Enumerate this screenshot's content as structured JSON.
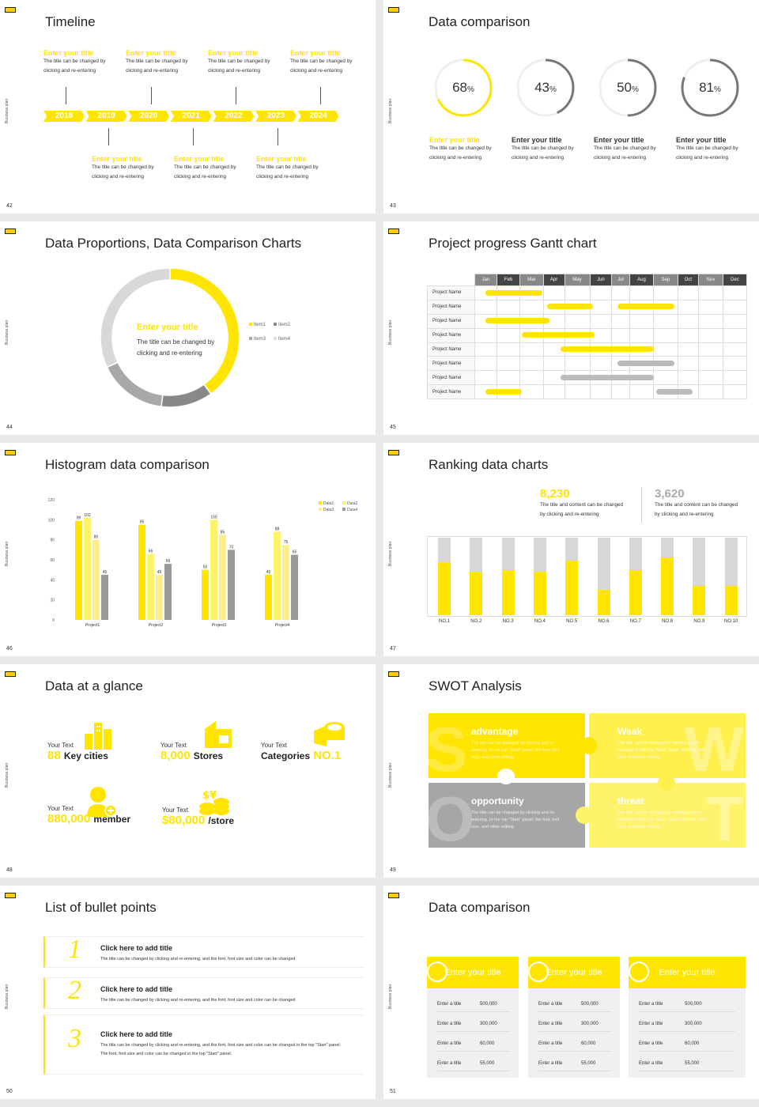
{
  "slides": [
    {
      "num": "42",
      "title": "Timeline",
      "years": [
        "2018",
        "2019",
        "2020",
        "2021",
        "2022",
        "2023",
        "2024"
      ],
      "top_items": [
        {
          "title": "Enter your title",
          "text1": "The title can be changed by",
          "text2": "clicking and re-entering"
        },
        {
          "title": "Enter your title",
          "text1": "The title can be changed by",
          "text2": "clicking and re-entering"
        },
        {
          "title": "Enter your title",
          "text1": "The title can be changed by",
          "text2": "clicking and re-entering"
        },
        {
          "title": "Enter your title",
          "text1": "The title can be changed by",
          "text2": "clicking and re-entering"
        }
      ],
      "bottom_items": [
        {
          "title": "Enter your title",
          "text1": "The title can be changed by",
          "text2": "clicking and re-entering"
        },
        {
          "title": "Enter your title",
          "text1": "The title can be changed by",
          "text2": "clicking and re-entering"
        },
        {
          "title": "Enter your title",
          "text1": "The title can be changed by",
          "text2": "clicking and re-entering"
        }
      ]
    },
    {
      "num": "43",
      "title": "Data comparison",
      "rings": [
        {
          "value": "68",
          "pct": 68,
          "color": "#ffe500",
          "title": "Enter your title",
          "text1": "The title can be changed by",
          "text2": "clicking and re-entering"
        },
        {
          "value": "43",
          "pct": 43,
          "color": "#777777",
          "title": "Enter your title",
          "text1": "The title can be changed by",
          "text2": "clicking and re-entering"
        },
        {
          "value": "50",
          "pct": 50,
          "color": "#777777",
          "title": "Enter your title",
          "text1": "The title can be changed by",
          "text2": "clicking and re-entering"
        },
        {
          "value": "81",
          "pct": 81,
          "color": "#777777",
          "title": "Enter your title",
          "text1": "The title can be changed by",
          "text2": "clicking and re-entering"
        }
      ],
      "pct_sign": "%"
    },
    {
      "num": "44",
      "title": "Data Proportions, Data Comparison Charts",
      "center_title": "Enter your title",
      "center_text1": "The title can be changed by",
      "center_text2": "clicking and re-entering",
      "legend": [
        "Item1",
        "Item2",
        "Item3",
        "Item4"
      ]
    },
    {
      "num": "45",
      "title": "Project progress Gantt chart",
      "months": [
        "Jan",
        "Feb",
        "Mar",
        "Apr",
        "May",
        "Jun",
        "Jul",
        "Aug",
        "Sep",
        "Oct",
        "Nov",
        "Dec"
      ],
      "rows": [
        "Project Name",
        "Project Name",
        "Project Name",
        "Project Name",
        "Project Name",
        "Project Name",
        "Project Name",
        "Project Name"
      ]
    },
    {
      "num": "46",
      "title": "Histogram data comparison"
    },
    {
      "num": "47",
      "title": "Ranking data charts",
      "stat1": {
        "value": "8,230",
        "text1": "The title and content can be changed",
        "text2": "by clicking and re-entering"
      },
      "stat2": {
        "value": "3,620",
        "text1": "The title and content can be changed",
        "text2": "by clicking and re-entering"
      }
    },
    {
      "num": "48",
      "title": "Data at a glance",
      "items": [
        {
          "small": "Your Text",
          "value": "88",
          "label": "Key cities"
        },
        {
          "small": "Your Text",
          "value": "8,000",
          "label": "Stores"
        },
        {
          "small": "Your Text",
          "value": "NO.1",
          "label": "Categories"
        },
        {
          "small": "Your Text",
          "value": "880,000",
          "label": "member"
        },
        {
          "small": "Your Text",
          "value": "$80,000",
          "label": "/store"
        }
      ]
    },
    {
      "num": "49",
      "title": "SWOT Analysis",
      "boxes": [
        {
          "heading": "advantage",
          "letter": "S",
          "text": "The title can be changed by clicking and re-entering. In the top \"Start\" panel, the font, font size, and other editing"
        },
        {
          "heading": "Weak",
          "letter": "W",
          "text": "The title can be changed by clicking and re-entering. In the top \"Start\" panel, the font, font size, and other editing"
        },
        {
          "heading": "opportunity",
          "letter": "O",
          "text": "The title can be changed by clicking and re-entering. In the top \"Start\" panel, the font, font size, and other editing"
        },
        {
          "heading": "threat",
          "letter": "T",
          "text": "The title can be changed by clicking and re-entering. In the top \"Start\" panel, the font, font size, and other editing"
        }
      ]
    },
    {
      "num": "50",
      "title": "List of bullet points",
      "bullets": [
        {
          "n": "1",
          "heading": "Click here to add title",
          "text": "The title can be changed by clicking and re-entering, and the font, font size and color can be changed"
        },
        {
          "n": "2",
          "heading": "Click here to add title",
          "text": "The title can be changed by clicking and re-entering, and the font, font size and color can be changed"
        },
        {
          "n": "3",
          "heading": "Click here to add title",
          "text": "The title can be changed by clicking and re-entering, and the font, font size and color can be changed in the top \"Start\" panel. The font, font size and color can be changed in the top \"Start\" panel."
        }
      ]
    },
    {
      "num": "51",
      "title": "Data comparison",
      "cards": [
        {
          "header": "Enter your title",
          "rows": [
            [
              "Enter a title",
              "500,000"
            ],
            [
              "Enter a title",
              "300,000"
            ],
            [
              "Enter a title",
              "60,000"
            ],
            [
              "Enter a title",
              "55,000"
            ]
          ]
        },
        {
          "header": "Enter your title",
          "rows": [
            [
              "Enter a title",
              "500,000"
            ],
            [
              "Enter a title",
              "300,000"
            ],
            [
              "Enter a title",
              "60,000"
            ],
            [
              "Enter a title",
              "55,000"
            ]
          ]
        },
        {
          "header": "Enter your title",
          "rows": [
            [
              "Enter a title",
              "500,000"
            ],
            [
              "Enter a title",
              "300,000"
            ],
            [
              "Enter a title",
              "60,000"
            ],
            [
              "Enter a title",
              "55,000"
            ]
          ]
        }
      ]
    }
  ],
  "side_label": "Business plan",
  "chart_data": [
    {
      "type": "pie",
      "title": "Data Proportions, Data Comparison Charts",
      "categories": [
        "Item1",
        "Item2",
        "Item3",
        "Item4"
      ],
      "values": [
        40,
        12,
        16,
        32
      ]
    },
    {
      "type": "bar",
      "title": "Histogram data comparison",
      "categories": [
        "Project1",
        "Project2",
        "Project3",
        "Project4"
      ],
      "series": [
        {
          "name": "Data1",
          "values": [
            99,
            95,
            50,
            45
          ]
        },
        {
          "name": "Data2",
          "values": [
            102,
            66,
            100,
            88
          ]
        },
        {
          "name": "Data3",
          "values": [
            80,
            45,
            85,
            75
          ]
        },
        {
          "name": "Data4",
          "values": [
            45,
            56,
            70,
            65
          ]
        }
      ],
      "ylim": [
        0,
        120
      ],
      "yticks": [
        "0",
        "20",
        "40",
        "60",
        "80",
        "100",
        "120"
      ]
    },
    {
      "type": "bar",
      "title": "Ranking data charts",
      "categories": [
        "NO.1",
        "NO.2",
        "NO.3",
        "NO.4",
        "NO.5",
        "NO.6",
        "NO.7",
        "NO.8",
        "NO.9",
        "NO.10"
      ],
      "values": [
        68,
        55,
        58,
        56,
        70,
        33,
        58,
        75,
        38,
        38
      ],
      "ylim": [
        0,
        100
      ]
    }
  ]
}
